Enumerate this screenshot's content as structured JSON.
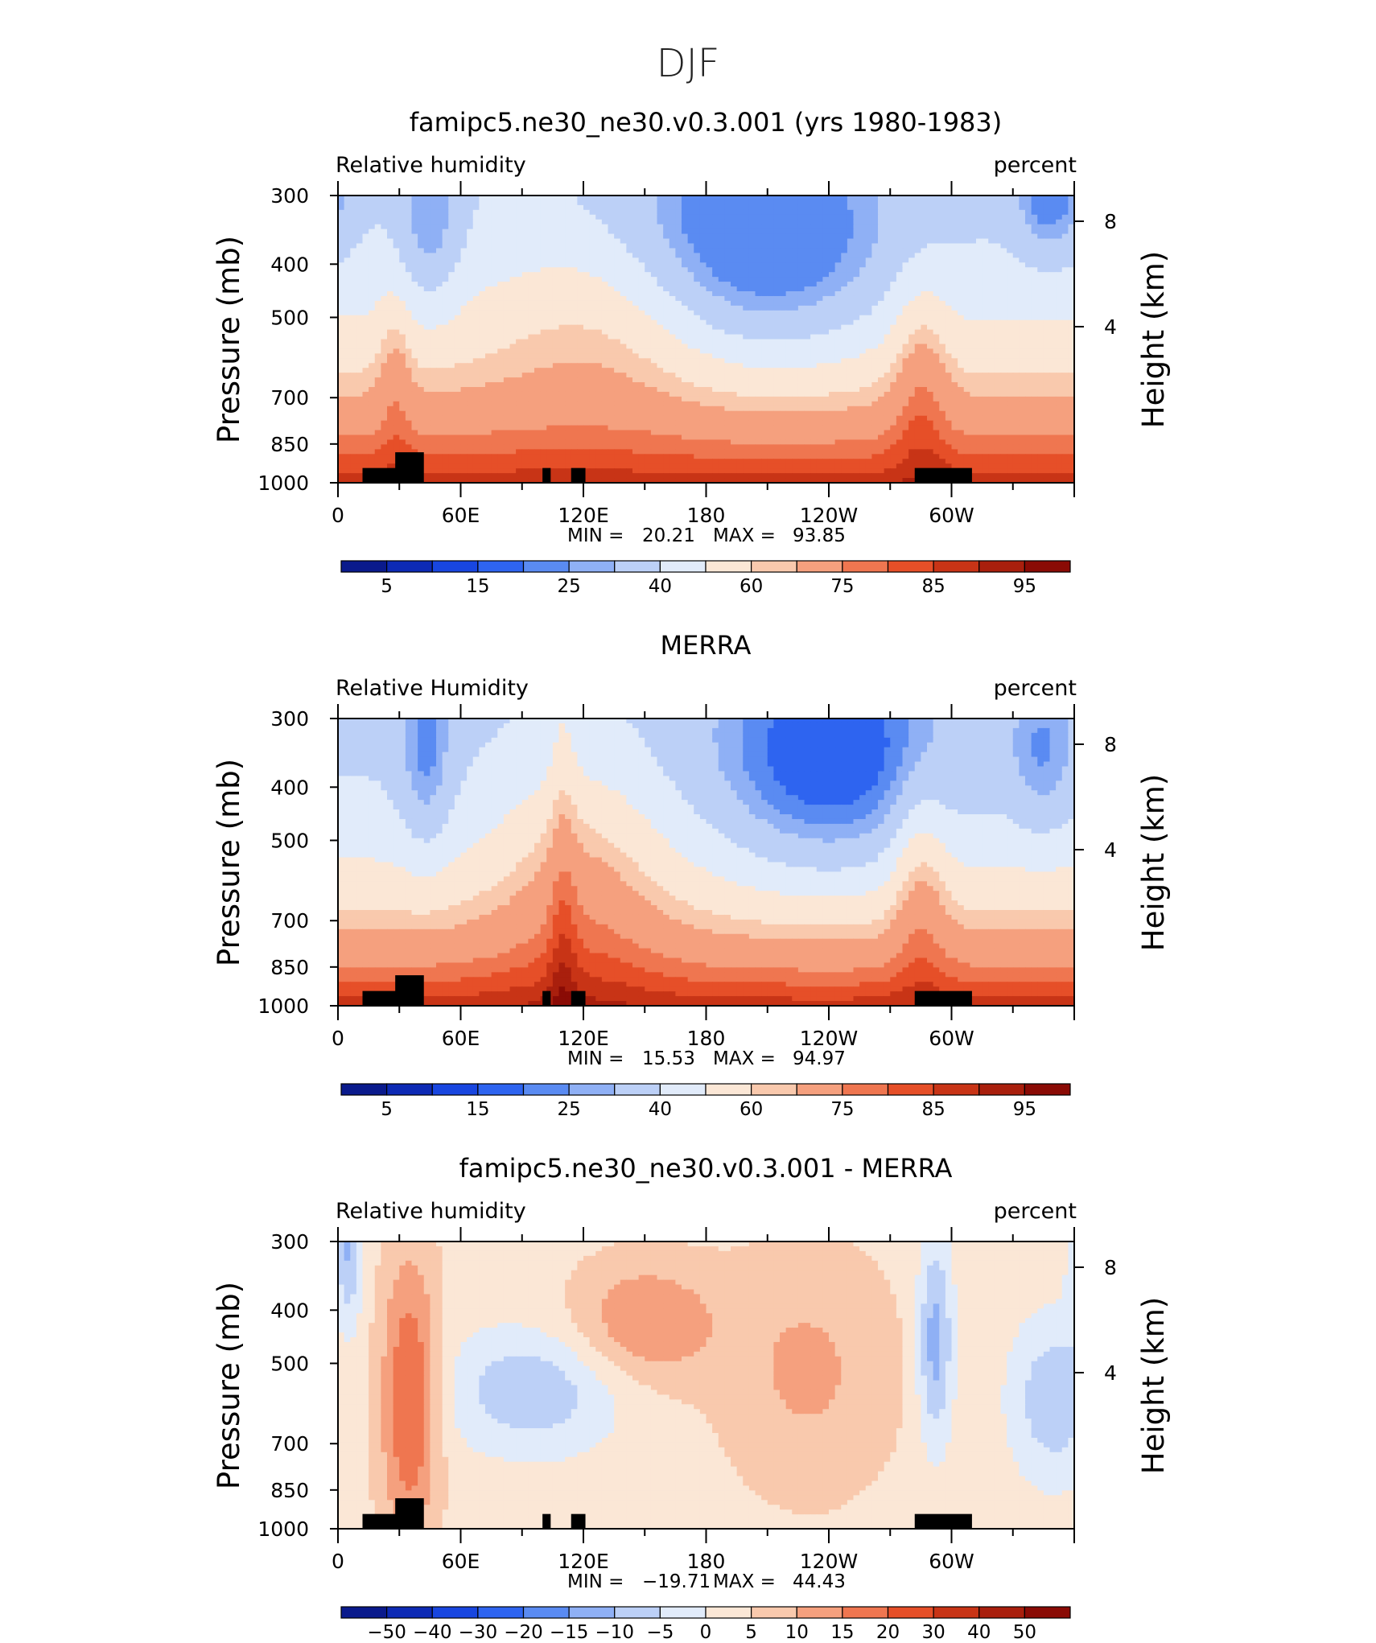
{
  "figure": {
    "title": "DJF"
  },
  "cbar_colors_abs": [
    "#0a1a8c",
    "#0d2ab5",
    "#1846e0",
    "#2e64f0",
    "#5a8bf2",
    "#8fb0f5",
    "#bcd0f7",
    "#e1ebfa",
    "#fbe7d6",
    "#f9c9ad",
    "#f5a07e",
    "#ef7650",
    "#e64f28",
    "#c83416",
    "#a91f0d",
    "#8a0b05"
  ],
  "cbar_colors_diff": [
    "#0a1a8c",
    "#0d2ab5",
    "#1846e0",
    "#2e64f0",
    "#5a8bf2",
    "#8fb0f5",
    "#bcd0f7",
    "#e1ebfa",
    "#fbe7d6",
    "#f9c9ad",
    "#f5a07e",
    "#ef7650",
    "#e64f28",
    "#c83416",
    "#a91f0d",
    "#8a0b05"
  ],
  "panels": [
    {
      "title": "famipc5.ne30_ne30.v0.3.001 (yrs 1980-1983)",
      "left_label": "Relative humidity",
      "right_label": "percent",
      "y_axis_title": "Pressure (mb)",
      "y2_axis_title": "Height (km)",
      "stats": {
        "min_label": "MIN =",
        "min": "20.21",
        "max_label": "MAX =",
        "max": "93.85"
      },
      "colorbar_labels": [
        "5",
        "15",
        "25",
        "40",
        "60",
        "75",
        "85",
        "95"
      ]
    },
    {
      "title": "MERRA",
      "left_label": "Relative Humidity",
      "right_label": "percent",
      "y_axis_title": "Pressure (mb)",
      "y2_axis_title": "Height (km)",
      "stats": {
        "min_label": "MIN =",
        "min": "15.53",
        "max_label": "MAX =",
        "max": "94.97"
      },
      "colorbar_labels": [
        "5",
        "15",
        "25",
        "40",
        "60",
        "75",
        "85",
        "95"
      ]
    },
    {
      "title": "famipc5.ne30_ne30.v0.3.001 - MERRA",
      "left_label": "Relative humidity",
      "right_label": "percent",
      "y_axis_title": "Pressure (mb)",
      "y2_axis_title": "Height (km)",
      "stats": {
        "min_label": "MIN =",
        "min": "−19.71",
        "max_label": "MAX =",
        "max": "44.43"
      },
      "colorbar_labels": [
        "−50",
        "−40",
        "−30",
        "−20",
        "−15",
        "−10",
        "−5",
        "0",
        "5",
        "10",
        "15",
        "20",
        "30",
        "40",
        "50"
      ]
    }
  ],
  "chart_data": [
    {
      "type": "heatmap",
      "title": "famipc5.ne30_ne30.v0.3.001 (yrs 1980-1983)",
      "variable": "Relative humidity",
      "units": "percent",
      "xlabel": "",
      "ylabel": "Pressure (mb)",
      "y2label": "Height (km)",
      "x_ticks": [
        "0",
        "60E",
        "120E",
        "180",
        "120W",
        "60W"
      ],
      "y_ticks": [
        300,
        400,
        500,
        700,
        850,
        1000
      ],
      "y2_ticks": [
        8,
        4
      ],
      "xlim": [
        0,
        360
      ],
      "ylim": [
        1000,
        300
      ],
      "y_scale": "log",
      "min": 20.21,
      "max": 93.85,
      "levels": [
        5,
        10,
        15,
        20,
        25,
        30,
        40,
        50,
        60,
        65,
        75,
        80,
        85,
        90,
        95
      ]
    },
    {
      "type": "heatmap",
      "title": "MERRA",
      "variable": "Relative Humidity",
      "units": "percent",
      "xlabel": "",
      "ylabel": "Pressure (mb)",
      "y2label": "Height (km)",
      "x_ticks": [
        "0",
        "60E",
        "120E",
        "180",
        "120W",
        "60W"
      ],
      "y_ticks": [
        300,
        400,
        500,
        700,
        850,
        1000
      ],
      "y2_ticks": [
        8,
        4
      ],
      "xlim": [
        0,
        360
      ],
      "ylim": [
        1000,
        300
      ],
      "y_scale": "log",
      "min": 15.53,
      "max": 94.97,
      "levels": [
        5,
        10,
        15,
        20,
        25,
        30,
        40,
        50,
        60,
        65,
        75,
        80,
        85,
        90,
        95
      ]
    },
    {
      "type": "heatmap",
      "title": "famipc5.ne30_ne30.v0.3.001 - MERRA",
      "variable": "Relative humidity",
      "units": "percent",
      "xlabel": "",
      "ylabel": "Pressure (mb)",
      "y2label": "Height (km)",
      "x_ticks": [
        "0",
        "60E",
        "120E",
        "180",
        "120W",
        "60W"
      ],
      "y_ticks": [
        300,
        400,
        500,
        700,
        850,
        1000
      ],
      "y2_ticks": [
        8,
        4
      ],
      "xlim": [
        0,
        360
      ],
      "ylim": [
        1000,
        300
      ],
      "y_scale": "log",
      "min": -19.71,
      "max": 44.43,
      "levels": [
        -50,
        -40,
        -30,
        -20,
        -15,
        -10,
        -5,
        0,
        5,
        10,
        15,
        20,
        30,
        40,
        50
      ]
    }
  ]
}
